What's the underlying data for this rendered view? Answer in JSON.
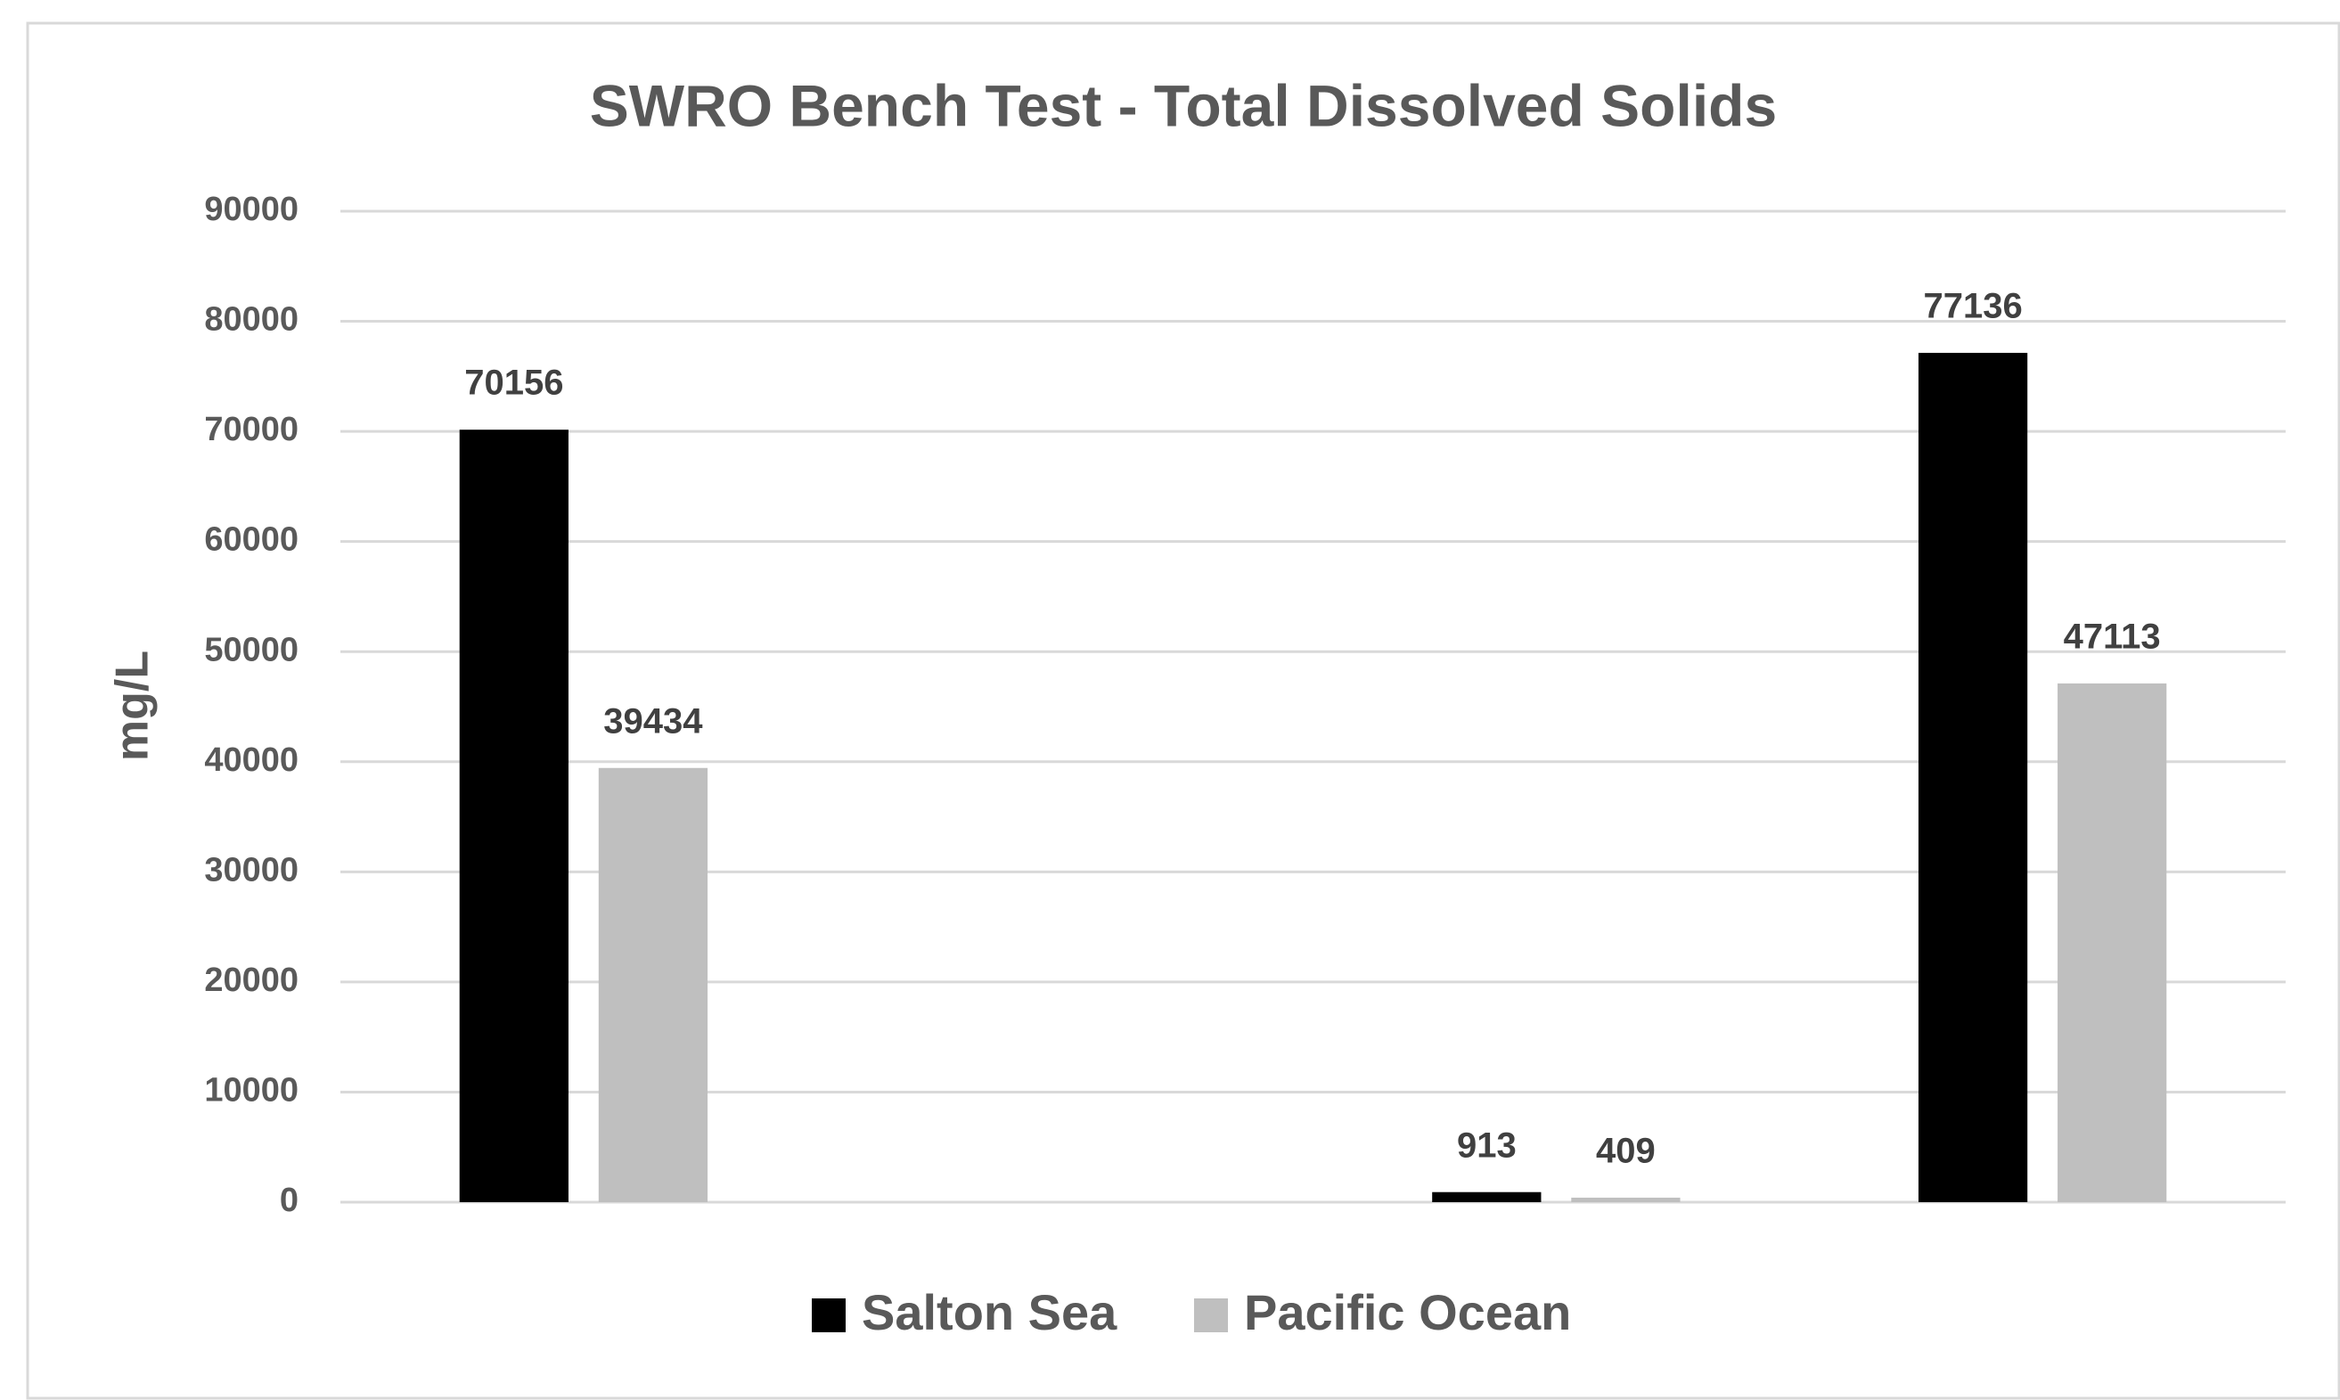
{
  "chart_data": {
    "type": "bar",
    "title": "SWRO Bench Test - Total Dissolved Solids",
    "y_label": "mg/L",
    "categories": [
      null,
      null,
      null,
      null
    ],
    "series": [
      {
        "name": "Salton Sea",
        "color": "#000000",
        "values": [
          70156,
          null,
          913,
          77136
        ]
      },
      {
        "name": "Pacific Ocean",
        "color": "#bfbfbf",
        "values": [
          39434,
          null,
          409,
          47113
        ]
      }
    ],
    "ylim": [
      0,
      90000
    ],
    "yticks": [
      0,
      10000,
      20000,
      30000,
      40000,
      50000,
      60000,
      70000,
      80000,
      90000
    ],
    "grid": true,
    "legend": "bottom"
  }
}
